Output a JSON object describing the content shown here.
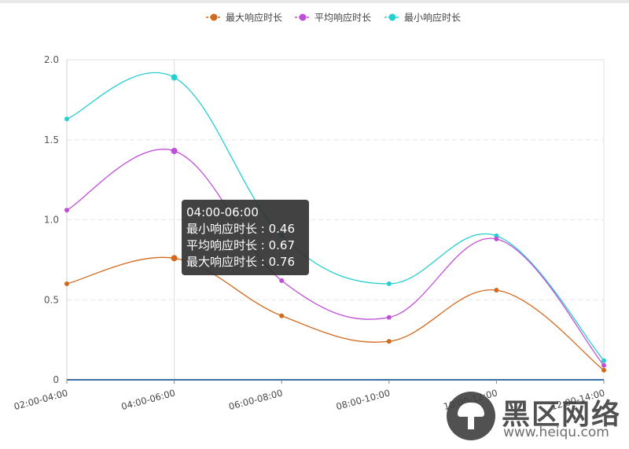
{
  "chart_data": {
    "type": "line",
    "categories": [
      "02:00-04:00",
      "04:00-06:00",
      "06:00-08:00",
      "08:00-10:00",
      "10:00-12:00",
      "12:00-14:00"
    ],
    "series": [
      {
        "name": "最大响应时长",
        "color": "#d2691e",
        "values": [
          0.6,
          0.76,
          0.4,
          0.24,
          0.56,
          0.06
        ]
      },
      {
        "name": "平均响应时长",
        "color": "#c04fd8",
        "values": [
          1.06,
          1.43,
          0.62,
          0.39,
          0.88,
          0.09
        ]
      },
      {
        "name": "最小响应时长",
        "color": "#27cfcf",
        "values": [
          1.63,
          1.89,
          0.9,
          0.6,
          0.9,
          0.12
        ]
      }
    ],
    "yticks": [
      "0",
      "0.5",
      "1.0",
      "1.5",
      "2.0"
    ],
    "ylim": [
      0,
      2
    ],
    "grid": true,
    "legend_position": "top-center",
    "tooltip": {
      "title": "04:00-06:00",
      "rows": [
        "最小响应时长 : 0.46",
        "平均响应时长 : 0.67",
        "最大响应时长 : 0.76"
      ]
    }
  },
  "watermark": {
    "title": "黑区网络",
    "url": "www.heiqu.com"
  }
}
